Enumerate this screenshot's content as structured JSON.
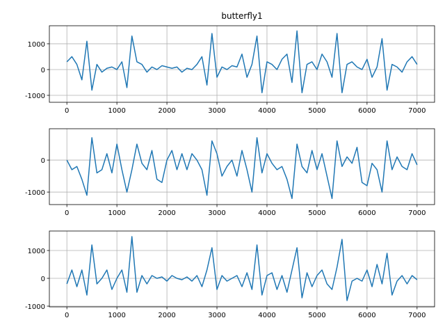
{
  "chart_data": [
    {
      "type": "line",
      "title": "butterfly1",
      "x": [
        0,
        100,
        200,
        300,
        400,
        500,
        600,
        700,
        800,
        900,
        1000,
        1100,
        1200,
        1300,
        1400,
        1500,
        1600,
        1700,
        1800,
        1900,
        2000,
        2100,
        2200,
        2300,
        2400,
        2500,
        2600,
        2700,
        2800,
        2900,
        3000,
        3100,
        3200,
        3300,
        3400,
        3500,
        3600,
        3700,
        3800,
        3900,
        4000,
        4100,
        4200,
        4300,
        4400,
        4500,
        4600,
        4700,
        4800,
        4900,
        5000,
        5100,
        5200,
        5300,
        5400,
        5500,
        5600,
        5700,
        5800,
        5900,
        6000,
        6100,
        6200,
        6300,
        6400,
        6500,
        6600,
        6700,
        6800,
        6900,
        7000
      ],
      "series": [
        {
          "color": "#1f77b4",
          "values": [
            300,
            500,
            200,
            -400,
            1100,
            -800,
            200,
            -100,
            50,
            100,
            0,
            300,
            -700,
            1300,
            300,
            200,
            -100,
            100,
            0,
            150,
            100,
            50,
            100,
            -100,
            50,
            0,
            200,
            500,
            -600,
            1400,
            -300,
            100,
            0,
            150,
            100,
            600,
            -300,
            200,
            1300,
            -900,
            300,
            200,
            0,
            400,
            600,
            -500,
            1500,
            -900,
            200,
            300,
            0,
            600,
            300,
            -300,
            1400,
            -900,
            200,
            300,
            100,
            0,
            400,
            -300,
            100,
            1200,
            -800,
            200,
            100,
            -100,
            300,
            500,
            200
          ]
        }
      ],
      "xlim": [
        -350,
        7350
      ],
      "ylim": [
        -1270,
        1700
      ],
      "xticks": [
        0,
        1000,
        2000,
        3000,
        4000,
        5000,
        6000,
        7000
      ],
      "yticks": [
        -1000,
        0,
        1000
      ],
      "grid": true
    },
    {
      "type": "line",
      "x": [
        0,
        100,
        200,
        300,
        400,
        500,
        600,
        700,
        800,
        900,
        1000,
        1100,
        1200,
        1300,
        1400,
        1500,
        1600,
        1700,
        1800,
        1900,
        2000,
        2100,
        2200,
        2300,
        2400,
        2500,
        2600,
        2700,
        2800,
        2900,
        3000,
        3100,
        3200,
        3300,
        3400,
        3500,
        3600,
        3700,
        3800,
        3900,
        4000,
        4100,
        4200,
        4300,
        4400,
        4500,
        4600,
        4700,
        4800,
        4900,
        5000,
        5100,
        5200,
        5300,
        5400,
        5500,
        5600,
        5700,
        5800,
        5900,
        6000,
        6100,
        6200,
        6300,
        6400,
        6500,
        6600,
        6700,
        6800,
        6900,
        7000
      ],
      "series": [
        {
          "color": "#1f77b4",
          "values": [
            0,
            -300,
            -200,
            -600,
            -1100,
            700,
            -400,
            -300,
            200,
            -400,
            500,
            -300,
            -1000,
            -300,
            500,
            -100,
            -300,
            300,
            -600,
            -700,
            0,
            300,
            -300,
            200,
            -300,
            200,
            0,
            -300,
            -1100,
            600,
            200,
            -500,
            -200,
            0,
            -500,
            300,
            -300,
            -1000,
            700,
            -400,
            200,
            -100,
            -300,
            -200,
            -600,
            -1200,
            500,
            -200,
            -400,
            300,
            -300,
            200,
            -500,
            -1200,
            600,
            -200,
            100,
            -100,
            400,
            -700,
            -800,
            -100,
            -300,
            -1000,
            600,
            -300,
            100,
            -200,
            -300,
            200,
            -150
          ]
        }
      ],
      "xlim": [
        -350,
        7350
      ],
      "ylim": [
        -1390,
        980
      ],
      "xticks": [
        0,
        1000,
        2000,
        3000,
        4000,
        5000,
        6000,
        7000
      ],
      "yticks": [
        -1000,
        0
      ],
      "grid": true
    },
    {
      "type": "line",
      "x": [
        0,
        100,
        200,
        300,
        400,
        500,
        600,
        700,
        800,
        900,
        1000,
        1100,
        1200,
        1300,
        1400,
        1500,
        1600,
        1700,
        1800,
        1900,
        2000,
        2100,
        2200,
        2300,
        2400,
        2500,
        2600,
        2700,
        2800,
        2900,
        3000,
        3100,
        3200,
        3300,
        3400,
        3500,
        3600,
        3700,
        3800,
        3900,
        4000,
        4100,
        4200,
        4300,
        4400,
        4500,
        4600,
        4700,
        4800,
        4900,
        5000,
        5100,
        5200,
        5300,
        5400,
        5500,
        5600,
        5700,
        5800,
        5900,
        6000,
        6100,
        6200,
        6300,
        6400,
        6500,
        6600,
        6700,
        6800,
        6900,
        7000
      ],
      "series": [
        {
          "color": "#1f77b4",
          "values": [
            -200,
            300,
            -300,
            300,
            -600,
            1200,
            -200,
            0,
            300,
            -400,
            0,
            300,
            -500,
            1500,
            -500,
            100,
            -200,
            100,
            0,
            50,
            -100,
            100,
            0,
            -50,
            50,
            -100,
            100,
            -300,
            300,
            1100,
            -400,
            100,
            -100,
            0,
            100,
            -300,
            200,
            -400,
            1200,
            -600,
            100,
            200,
            -400,
            100,
            -500,
            300,
            1100,
            -700,
            200,
            -300,
            100,
            300,
            -200,
            -400,
            400,
            1400,
            -800,
            -100,
            0,
            -100,
            300,
            -300,
            500,
            -200,
            900,
            -600,
            -100,
            100,
            -200,
            100,
            -50
          ]
        }
      ],
      "xlim": [
        -350,
        7350
      ],
      "ylim": [
        -1025,
        1700
      ],
      "xticks": [
        0,
        1000,
        2000,
        3000,
        4000,
        5000,
        6000,
        7000
      ],
      "yticks": [
        -1000,
        0,
        1000
      ],
      "grid": true
    }
  ]
}
